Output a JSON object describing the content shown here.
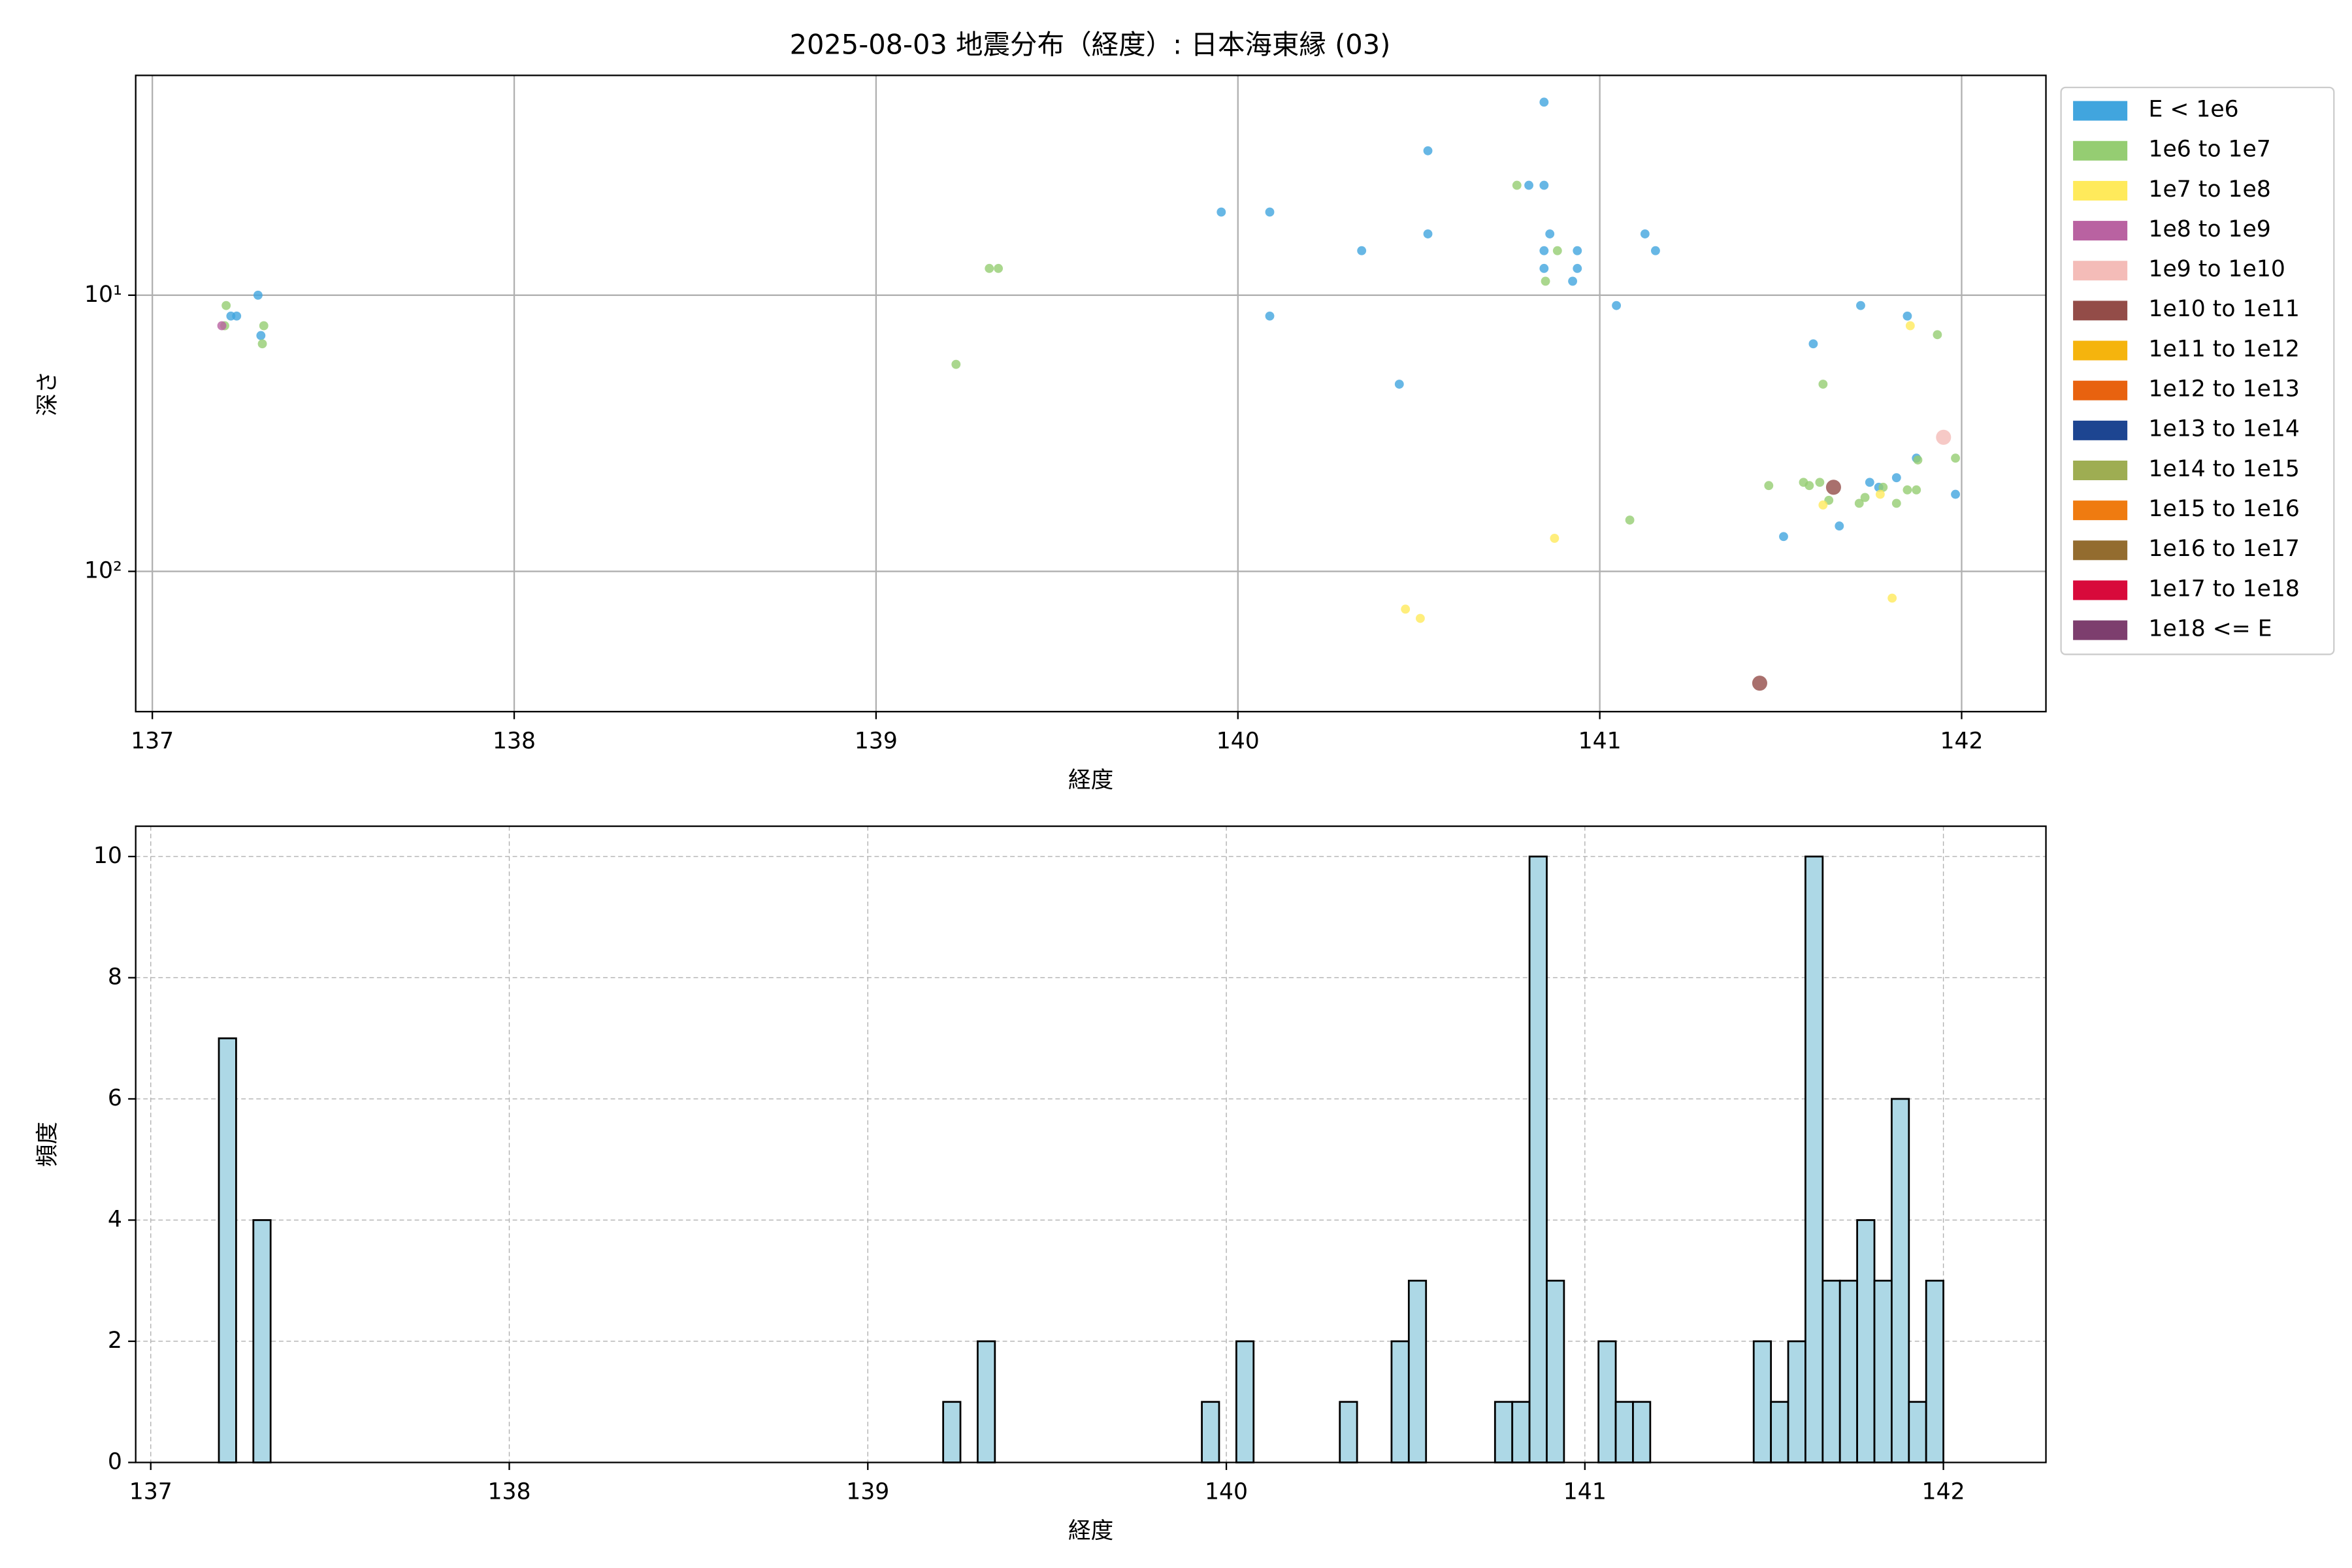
{
  "chart_data": [
    {
      "type": "scatter",
      "title": "2025-08-03 地震分布（経度）: 日本海東縁 (03)",
      "x_label": "経度",
      "y_label": "深さ",
      "xlim": [
        136.954,
        142.233
      ],
      "xticks": [
        137,
        138,
        139,
        140,
        141,
        142
      ],
      "ylim": [
        1.6,
        322
      ],
      "yscale": "log",
      "invert_y": true,
      "yticks": [
        {
          "value": 10,
          "label": "10¹"
        },
        {
          "value": 100,
          "label": "10²"
        }
      ],
      "grid": true,
      "legend": "outside right",
      "series": [
        {
          "name": "E < 1e6",
          "color": "#41a5de",
          "x": [
            137.292,
            137.233,
            137.217,
            137.3,
            139.954,
            140.088,
            140.088,
            140.525,
            140.846,
            140.525,
            140.804,
            140.846,
            140.342,
            140.862,
            140.846,
            140.846,
            140.938,
            140.938,
            140.925,
            140.446,
            141.125,
            141.154,
            141.046,
            141.721,
            141.85,
            141.59,
            141.746,
            141.82,
            141.875,
            141.983,
            141.508,
            141.662,
            141.771
          ],
          "values": [
            10.0,
            11.9,
            11.9,
            14.0,
            5.0,
            5.0,
            11.9,
            3.0,
            2.0,
            6.0,
            4.0,
            4.0,
            6.9,
            6.0,
            6.9,
            8.0,
            6.9,
            8.0,
            8.9,
            21,
            6.0,
            6.9,
            10.9,
            10.9,
            11.9,
            15,
            47.6,
            45.8,
            38.9,
            52.6,
            74.8,
            68.5,
            49.6
          ]
        },
        {
          "name": "1e6 to 1e7",
          "color": "#95cd72",
          "x": [
            137.204,
            137.2,
            137.308,
            137.304,
            139.221,
            139.313,
            139.338,
            140.771,
            140.883,
            140.85,
            141.617,
            141.933,
            141.983,
            141.879,
            141.467,
            141.563,
            141.579,
            141.608,
            141.633,
            141.717,
            141.733,
            141.783,
            141.85,
            141.875,
            141.82,
            141.083
          ],
          "values": [
            10.9,
            12.9,
            12.9,
            15,
            17.8,
            8.0,
            8.0,
            4.0,
            6.9,
            8.9,
            21,
            13.9,
            38.9,
            39.5,
            48.9,
            47.6,
            48.9,
            47.6,
            55.3,
            56.7,
            54,
            49.6,
            50.7,
            50.7,
            56.7,
            65.2
          ]
        },
        {
          "name": "1e7 to 1e8",
          "color": "#ffea5b",
          "x": [
            141.858,
            140.875,
            141.617,
            141.775,
            140.463,
            140.504,
            141.808
          ],
          "values": [
            12.9,
            75.9,
            57.5,
            52.6,
            137,
            148,
            125
          ]
        },
        {
          "name": "1e8 to 1e9",
          "color": "#b962a1",
          "x": [
            137.192
          ],
          "values": [
            12.9
          ]
        },
        {
          "name": "1e9 to 1e10",
          "color": "#f4bcb8",
          "x": [
            141.95
          ],
          "values": [
            32.7
          ]
        },
        {
          "name": "1e10 to 1e11",
          "color": "#934c48",
          "x": [
            141.646,
            141.442
          ],
          "values": [
            49.6,
            254
          ]
        },
        {
          "name": "1e11 to 1e12",
          "color": "#f5b40d",
          "x": [],
          "values": []
        },
        {
          "name": "1e12 to 1e13",
          "color": "#e8620f",
          "x": [],
          "values": []
        },
        {
          "name": "1e13 to 1e14",
          "color": "#1d4591",
          "x": [],
          "values": []
        },
        {
          "name": "1e14 to 1e15",
          "color": "#9ead52",
          "x": [],
          "values": []
        },
        {
          "name": "1e15 to 1e16",
          "color": "#ef7b10",
          "x": [],
          "values": []
        },
        {
          "name": "1e16 to 1e17",
          "color": "#936c2f",
          "x": [],
          "values": []
        },
        {
          "name": "1e17 to 1e18",
          "color": "#d80a3b",
          "x": [],
          "values": []
        },
        {
          "name": "1e18 <= E",
          "color": "#7d3e6e",
          "x": [],
          "values": []
        }
      ]
    },
    {
      "type": "histogram",
      "x_label": "経度",
      "y_label": "頻度",
      "xlim": [
        136.958,
        142.286
      ],
      "xticks": [
        137,
        138,
        139,
        140,
        141,
        142
      ],
      "ylim": [
        0,
        10.5
      ],
      "yticks": [
        0,
        2,
        4,
        6,
        8,
        10
      ],
      "grid": true,
      "grid_style": "dashed",
      "color": "#add8e6",
      "edgecolor": "#000000",
      "bins": [
        137.19,
        137.2381,
        137.2862,
        137.3343,
        137.3824,
        137.4305,
        137.4786,
        137.5267,
        137.5748,
        137.6229,
        137.671,
        137.7191,
        137.7672,
        137.8153,
        137.8634,
        137.9115,
        137.9596,
        138.0077,
        138.0558,
        138.1039,
        138.152,
        138.2001,
        138.2482,
        138.2963,
        138.3444,
        138.3925,
        138.4406,
        138.4887,
        138.5368,
        138.5849,
        138.633,
        138.6811,
        138.7292,
        138.7773,
        138.8254,
        138.8735,
        138.9216,
        138.9697,
        139.0178,
        139.0659,
        139.114,
        139.1621,
        139.2102,
        139.2583,
        139.3064,
        139.3545,
        139.4026,
        139.4507,
        139.4988,
        139.5469,
        139.595,
        139.6431,
        139.6912,
        139.7393,
        139.7874,
        139.8355,
        139.8836,
        139.9317,
        139.9798,
        140.0279,
        140.076,
        140.1241,
        140.1722,
        140.2203,
        140.2684,
        140.3165,
        140.3646,
        140.4127,
        140.4608,
        140.5089,
        140.557,
        140.6051,
        140.6532,
        140.7013,
        140.7494,
        140.7975,
        140.8456,
        140.8937,
        140.9418,
        140.9899,
        141.038,
        141.0861,
        141.1342,
        141.1823,
        141.2304,
        141.2785,
        141.3266,
        141.3747,
        141.4228,
        141.4709,
        141.519,
        141.5671,
        141.6152,
        141.6633,
        141.7114,
        141.7595,
        141.8076,
        141.8557,
        141.9038,
        141.9519,
        142.0
      ],
      "values": [
        7,
        0,
        4,
        0,
        0,
        0,
        0,
        0,
        0,
        0,
        0,
        0,
        0,
        0,
        0,
        0,
        0,
        0,
        0,
        0,
        0,
        0,
        0,
        0,
        0,
        0,
        0,
        0,
        0,
        0,
        0,
        0,
        0,
        0,
        0,
        0,
        0,
        0,
        0,
        0,
        0,
        0,
        1,
        0,
        2,
        0,
        0,
        0,
        0,
        0,
        0,
        0,
        0,
        0,
        0,
        0,
        0,
        1,
        0,
        2,
        0,
        0,
        0,
        0,
        0,
        1,
        0,
        0,
        2,
        3,
        0,
        0,
        0,
        0,
        1,
        1,
        10,
        3,
        0,
        0,
        2,
        1,
        1,
        0,
        0,
        0,
        0,
        0,
        0,
        2,
        1,
        2,
        10,
        3,
        3,
        4,
        3,
        6,
        1,
        3
      ]
    }
  ]
}
